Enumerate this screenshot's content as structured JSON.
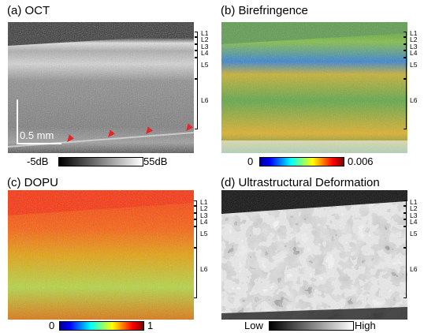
{
  "panels": {
    "a": {
      "title": "(a) OCT",
      "colorbar": {
        "min": "-5dB",
        "max": "55dB"
      },
      "scalebar": "0.5 mm"
    },
    "b": {
      "title": "(b) Birefringence",
      "colorbar": {
        "min": "0",
        "max": "0.006"
      }
    },
    "c": {
      "title": "(c) DOPU",
      "colorbar": {
        "min": "0",
        "max": "1"
      }
    },
    "d": {
      "title": "(d) Ultrastructural Deformation",
      "colorbar": {
        "min": "Low",
        "max": "High"
      }
    }
  },
  "layers": [
    "L1",
    "L2",
    "L3",
    "L4",
    "L5",
    "L6"
  ],
  "colors": {
    "arrow": "#e8232a",
    "jet_low": "#00008f",
    "jet_high": "#800000"
  }
}
